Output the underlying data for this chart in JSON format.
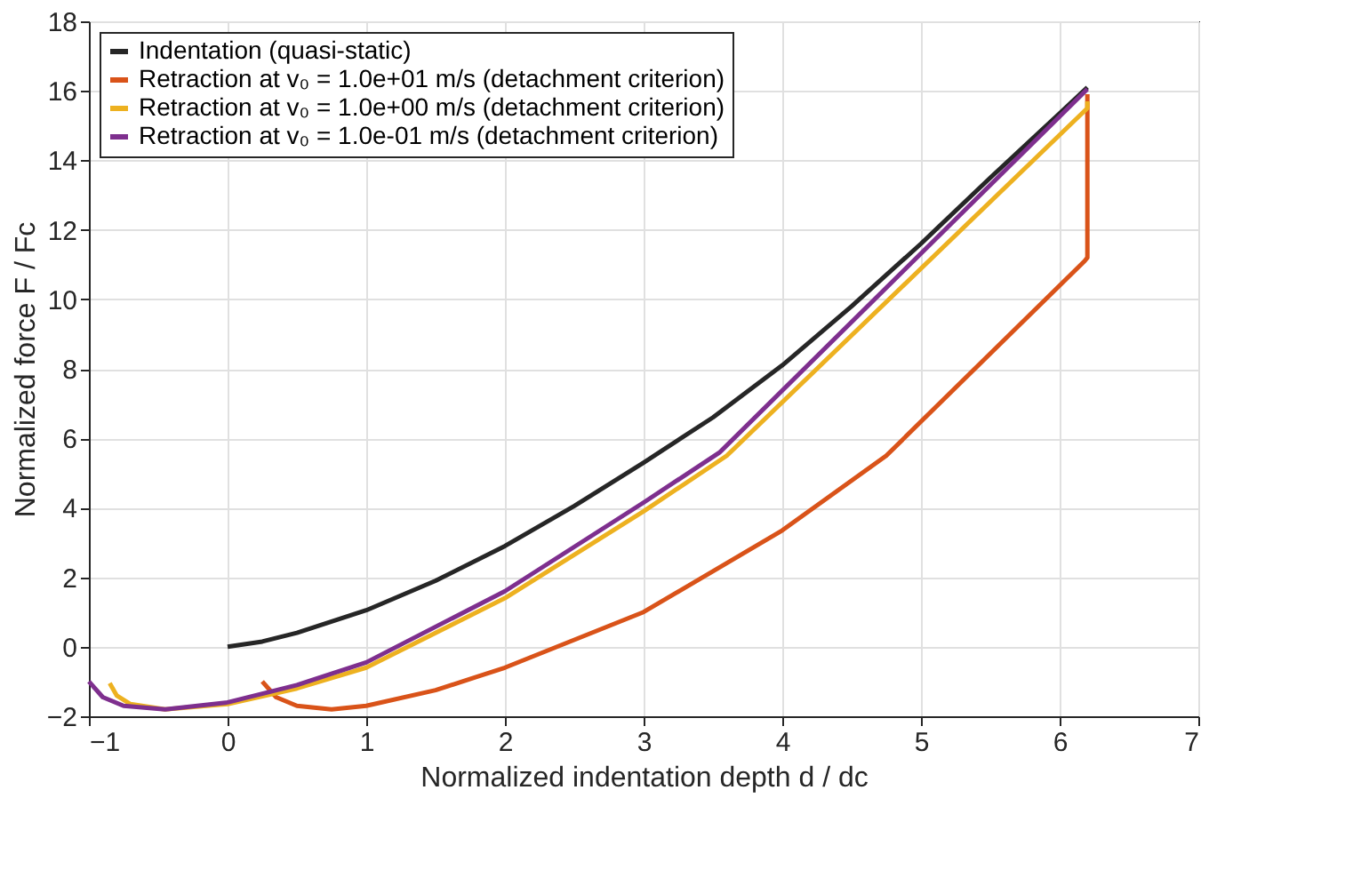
{
  "chart_data": {
    "type": "line",
    "xlabel": "Normalized indentation depth  d / dc",
    "ylabel": "Normalized force  F / Fc",
    "xlim": [
      -1,
      7
    ],
    "ylim": [
      -2,
      18
    ],
    "xticks": [
      -1,
      0,
      1,
      2,
      3,
      4,
      5,
      6,
      7
    ],
    "yticks": [
      -2,
      0,
      2,
      4,
      6,
      8,
      10,
      12,
      14,
      16,
      18
    ],
    "grid": true,
    "legend": "top left",
    "line_style": "solid",
    "marker": "none",
    "series": [
      {
        "name": "Indentation (quasi-static)",
        "color": "#262626",
        "x": [
          0,
          0.25,
          0.5,
          1,
          1.5,
          2,
          2.5,
          3,
          3.5,
          4,
          4.5,
          5,
          5.5,
          6,
          6.2
        ],
        "values": [
          0,
          0.15,
          0.4,
          1.05,
          1.9,
          2.9,
          4.05,
          5.3,
          6.6,
          8.1,
          9.8,
          11.6,
          13.5,
          15.35,
          16.1
        ]
      },
      {
        "name": "Retraction at v₀ = 1.0e+01 m/s (detachment criterion)",
        "color": "#d95319",
        "x": [
          6.2,
          6.2,
          6.2,
          6.18,
          4.75,
          4.0,
          3.0,
          2.0,
          1.5,
          1.0,
          0.75,
          0.5,
          0.35,
          0.25
        ],
        "values": [
          15.9,
          11.5,
          11.2,
          11.1,
          5.5,
          3.35,
          1.0,
          -0.6,
          -1.25,
          -1.7,
          -1.8,
          -1.7,
          -1.45,
          -1.0
        ]
      },
      {
        "name": "Retraction at v₀ = 1.0e+00 m/s (detachment criterion)",
        "color": "#edb120",
        "x": [
          6.2,
          6.2,
          3.6,
          3.0,
          2.0,
          1.0,
          0.5,
          0,
          -0.45,
          -0.7,
          -0.8,
          -0.85
        ],
        "values": [
          15.7,
          15.5,
          5.5,
          3.9,
          1.4,
          -0.6,
          -1.2,
          -1.65,
          -1.8,
          -1.65,
          -1.4,
          -1.05
        ]
      },
      {
        "name": "Retraction at v₀ = 1.0e-01 m/s (detachment criterion)",
        "color": "#7e2f8e",
        "x": [
          6.2,
          3.55,
          3.0,
          2.0,
          1.0,
          0.5,
          0,
          -0.45,
          -0.75,
          -0.9,
          -1.0
        ],
        "values": [
          16.05,
          5.6,
          4.15,
          1.6,
          -0.45,
          -1.1,
          -1.6,
          -1.8,
          -1.7,
          -1.45,
          -1.0
        ]
      }
    ]
  }
}
